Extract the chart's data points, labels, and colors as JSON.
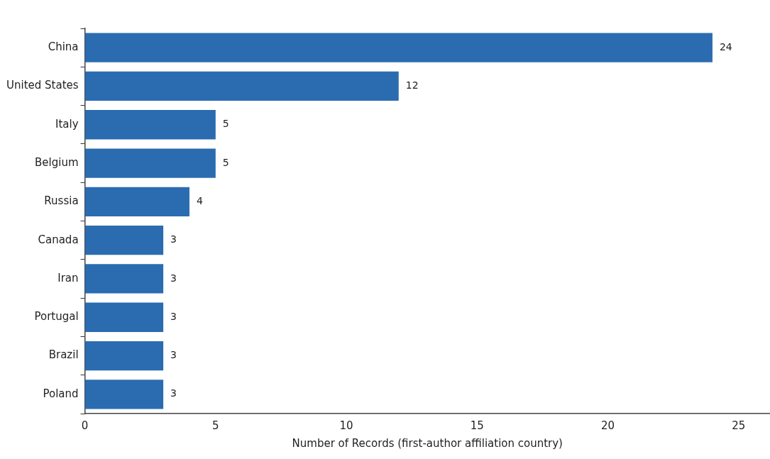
{
  "chart_data": {
    "type": "bar",
    "orientation": "horizontal",
    "xlabel": "Number of Records (first-author affiliation country)",
    "categories": [
      "China",
      "United States",
      "Italy",
      "Belgium",
      "Russia",
      "Canada",
      "Iran",
      "Portugal",
      "Brazil",
      "Poland"
    ],
    "values": [
      24,
      12,
      5,
      5,
      4,
      3,
      3,
      3,
      3,
      3
    ],
    "color": "#2b6cb0",
    "xlim": [
      0,
      26.2
    ],
    "xticks": [
      0,
      5,
      10,
      15,
      20,
      25
    ],
    "grid": false,
    "legend": false,
    "data_labels": true
  }
}
